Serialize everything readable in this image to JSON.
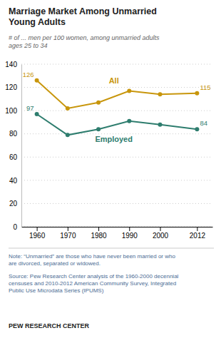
{
  "chart_data": {
    "type": "line",
    "title": "Marriage Market Among Unmarried\nYoung Adults",
    "subtitle": "# of ... men per 100 women, among unmarried adults\nages 25 to 34",
    "x": [
      1960,
      1970,
      1980,
      1990,
      2000,
      2012
    ],
    "series": [
      {
        "name": "All",
        "color": "#C8960C",
        "marker": "circle",
        "values": [
          126,
          102,
          107,
          117,
          114,
          115
        ],
        "value_labels": [
          "126",
          null,
          null,
          null,
          null,
          "115"
        ]
      },
      {
        "name": "Employed",
        "color": "#2E7D6E",
        "marker": "circle",
        "values": [
          97,
          79,
          84,
          91,
          88,
          84
        ],
        "value_labels": [
          "97",
          null,
          null,
          null,
          null,
          "84"
        ]
      }
    ],
    "xlim": [
      1955,
      2017
    ],
    "xticks": [
      1960,
      1970,
      1980,
      1990,
      2000,
      2012
    ],
    "ylim": [
      0,
      140
    ],
    "yticks": [
      0,
      20,
      40,
      60,
      80,
      100,
      120,
      140
    ],
    "grid": true,
    "annotations": [
      "Note: “Unmarried” are those who have never been married or who\nare divorced, separated or widowed.",
      "Source: Pew Research Center analysis of the 1960-2000 decennial\ncensuses and 2010-2012 American Community Survey, Integrated\nPublic Use Microdata Series (IPUMS)",
      "PEW RESEARCH CENTER"
    ]
  }
}
